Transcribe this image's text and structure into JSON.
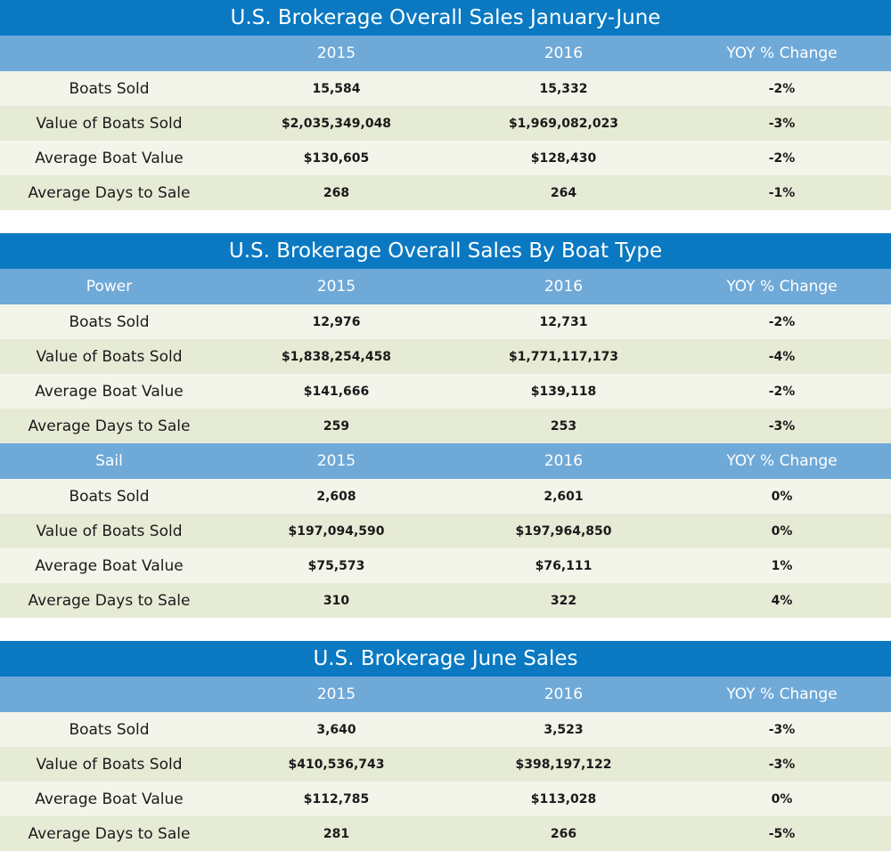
{
  "tables": [
    {
      "title": "U.S. Brokerage Overall Sales January-June",
      "sections": [
        {
          "columns": [
            "2015",
            "2016",
            "YOY % Change"
          ],
          "rows": [
            [
              "Boats Sold",
              "15,584",
              "15,332",
              "-2%"
            ],
            [
              "Value of Boats Sold",
              "$2,035,349,048",
              "$1,969,082,023",
              "-3%"
            ],
            [
              "Average Boat Value",
              "$130,605",
              "$128,430",
              "-2%"
            ],
            [
              "Average Days to Sale",
              "268",
              "264",
              "-1%"
            ]
          ]
        }
      ]
    },
    {
      "title": "U.S. Brokerage Overall Sales By Boat Type",
      "sections": [
        {
          "label": "Power",
          "columns": [
            "2015",
            "2016",
            "YOY % Change"
          ],
          "rows": [
            [
              "Boats Sold",
              "12,976",
              "12,731",
              "-2%"
            ],
            [
              "Value of Boats Sold",
              "$1,838,254,458",
              "$1,771,117,173",
              "-4%"
            ],
            [
              "Average Boat Value",
              "$141,666",
              "$139,118",
              "-2%"
            ],
            [
              "Average Days to Sale",
              "259",
              "253",
              "-3%"
            ]
          ]
        },
        {
          "label": "Sail",
          "columns": [
            "2015",
            "2016",
            "YOY % Change"
          ],
          "rows": [
            [
              "Boats Sold",
              "2,608",
              "2,601",
              "0%"
            ],
            [
              "Value of Boats Sold",
              "$197,094,590",
              "$197,964,850",
              "0%"
            ],
            [
              "Average Boat Value",
              "$75,573",
              "$76,111",
              "1%"
            ],
            [
              "Average Days to Sale",
              "310",
              "322",
              "4%"
            ]
          ]
        }
      ]
    },
    {
      "title": "U.S. Brokerage June Sales",
      "sections": [
        {
          "columns": [
            "2015",
            "2016",
            "YOY % Change"
          ],
          "rows": [
            [
              "Boats Sold",
              "3,640",
              "3,523",
              "-3%"
            ],
            [
              "Value of Boats Sold",
              "$410,536,743",
              "$398,197,122",
              "-3%"
            ],
            [
              "Average Boat Value",
              "$112,785",
              "$113,028",
              "0%"
            ],
            [
              "Average Days to Sale",
              "281",
              "266",
              "-5%"
            ]
          ]
        }
      ]
    }
  ]
}
